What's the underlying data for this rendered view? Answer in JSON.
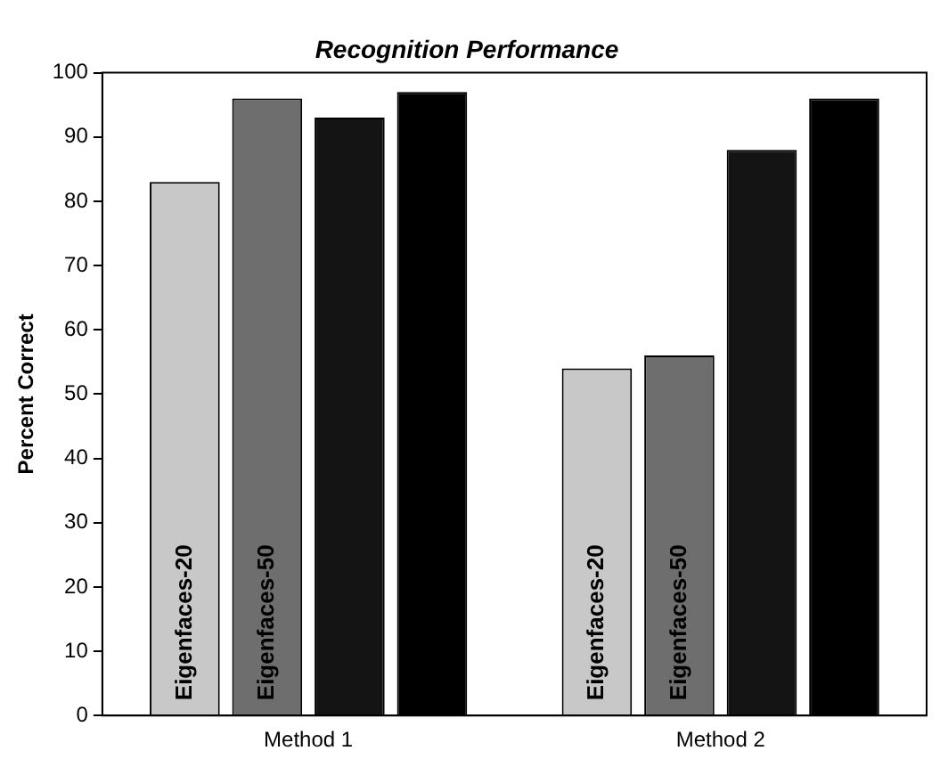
{
  "chart_data": {
    "type": "bar",
    "title": "Recognition Performance",
    "ylabel": "Percent Correct",
    "categories": [
      "Method 1",
      "Method 2"
    ],
    "series": [
      {
        "name": "Eigenfaces-20",
        "color": "#c8c8c8",
        "values": [
          83,
          54
        ]
      },
      {
        "name": "Eigenfaces-50",
        "color": "#6e6e6e",
        "values": [
          96,
          56
        ]
      },
      {
        "color": "#141414",
        "values": [
          93,
          88
        ]
      },
      {
        "color": "#000000",
        "values": [
          97,
          96
        ]
      }
    ],
    "ylim": [
      0,
      100
    ],
    "yticks": [
      0,
      10,
      20,
      30,
      40,
      50,
      60,
      70,
      80,
      90,
      100
    ],
    "grid": false,
    "legend": false
  }
}
